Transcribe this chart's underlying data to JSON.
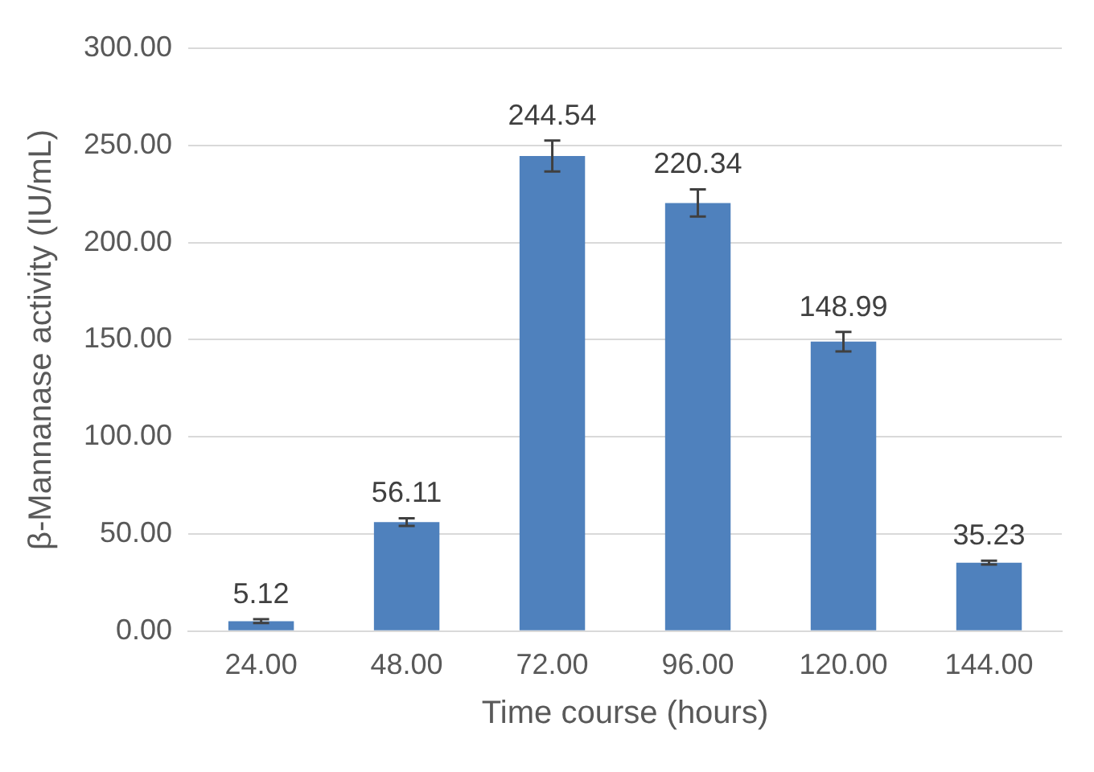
{
  "chart_data": {
    "type": "bar",
    "xlabel": "Time course (hours)",
    "ylabel": "β-Mannanase activity (IU/mL)",
    "categories": [
      "24.00",
      "48.00",
      "72.00",
      "96.00",
      "120.00",
      "144.00"
    ],
    "values": [
      5.12,
      56.11,
      244.54,
      220.34,
      148.99,
      35.23
    ],
    "errors": [
      1,
      2,
      8,
      7,
      5,
      1
    ],
    "color": "#4f81bd",
    "ylim": [
      0,
      300
    ],
    "yticks": [
      {
        "value": 0,
        "label": "0.00"
      },
      {
        "value": 50,
        "label": "50.00"
      },
      {
        "value": 100,
        "label": "100.00"
      },
      {
        "value": 150,
        "label": "150.00"
      },
      {
        "value": 200,
        "label": "200.00"
      },
      {
        "value": 250,
        "label": "250.00"
      },
      {
        "value": 300,
        "label": "300.00"
      }
    ],
    "grid": "y",
    "legend": false,
    "data_labels": true
  }
}
